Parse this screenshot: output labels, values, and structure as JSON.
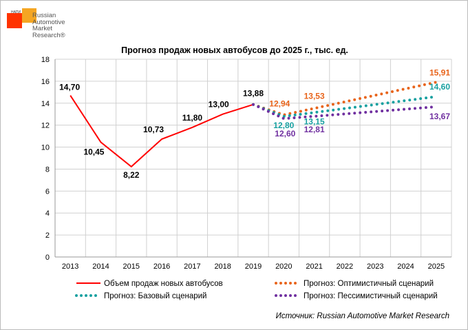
{
  "logo": {
    "small": "НАПИ",
    "lines": [
      "Russian",
      "Automotive",
      "Market",
      "Research®"
    ]
  },
  "chart_data": {
    "type": "line",
    "title": "Прогноз продаж новых автобусов до 2025 г., тыс. ед.",
    "categories": [
      "2013",
      "2014",
      "2015",
      "2016",
      "2017",
      "2018",
      "2019",
      "2020",
      "2021",
      "2022",
      "2023",
      "2024",
      "2025"
    ],
    "ylim": [
      0,
      18
    ],
    "yticks": [
      "0",
      "2",
      "4",
      "6",
      "8",
      "10",
      "12",
      "14",
      "16",
      "18"
    ],
    "grid": true,
    "legend_position": "bottom",
    "series": [
      {
        "name": "Объем продаж новых автобусов",
        "color": "#ff0000",
        "style": "solid",
        "values": [
          14.7,
          10.45,
          8.22,
          10.73,
          11.8,
          13.0,
          13.88,
          null,
          null,
          null,
          null,
          null,
          null
        ],
        "labels": [
          "14,70",
          "10,45",
          "8,22",
          "10,73",
          "11,80",
          "13,00",
          "13,88",
          null,
          null,
          null,
          null,
          null,
          null
        ]
      },
      {
        "name": "Прогноз: Оптимистичный сценарий",
        "color": "#e8641b",
        "style": "dotted",
        "values": [
          null,
          null,
          null,
          null,
          null,
          null,
          13.88,
          12.94,
          13.53,
          null,
          null,
          null,
          15.91
        ],
        "labels": [
          null,
          null,
          null,
          null,
          null,
          null,
          null,
          "12,94",
          "13,53",
          null,
          null,
          null,
          "15,91"
        ]
      },
      {
        "name": "Прогноз: Базовый сценарий",
        "color": "#17a0a0",
        "style": "dotted",
        "values": [
          null,
          null,
          null,
          null,
          null,
          null,
          13.88,
          12.8,
          13.15,
          null,
          null,
          null,
          14.6
        ],
        "labels": [
          null,
          null,
          null,
          null,
          null,
          null,
          null,
          "12,80",
          "13,15",
          null,
          null,
          null,
          "14,60"
        ]
      },
      {
        "name": "Прогноз: Пессимистичный сценарий",
        "color": "#7030a0",
        "style": "dotted",
        "values": [
          null,
          null,
          null,
          null,
          null,
          null,
          13.88,
          12.6,
          12.81,
          null,
          null,
          null,
          13.67
        ],
        "labels": [
          null,
          null,
          null,
          null,
          null,
          null,
          null,
          "12,60",
          "12,81",
          null,
          null,
          null,
          "13,67"
        ]
      }
    ],
    "source": "Источник: Russian Automotive Market Research"
  }
}
